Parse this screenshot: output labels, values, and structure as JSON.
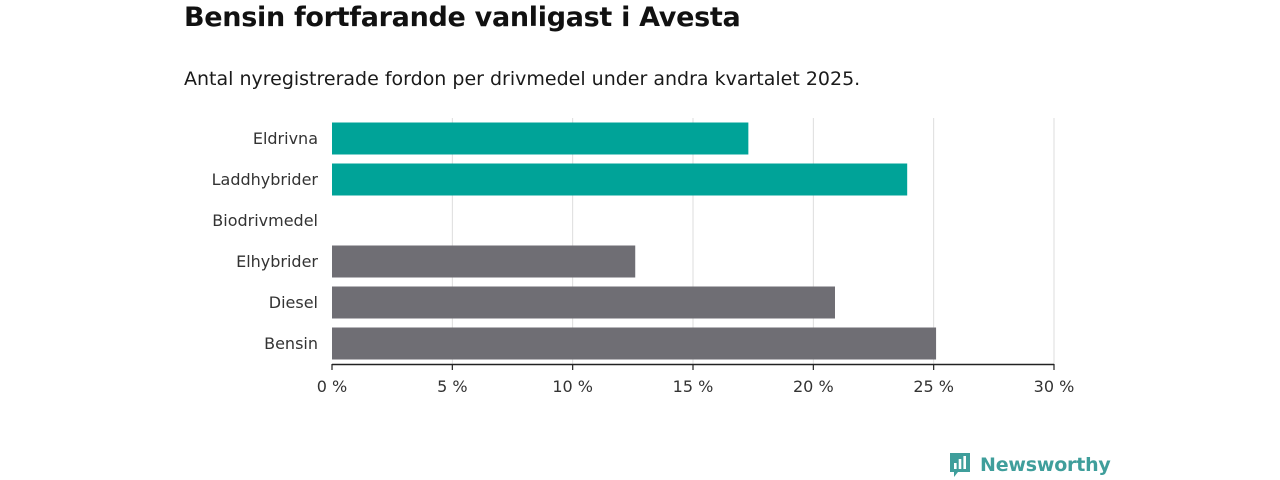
{
  "colors": {
    "highlight": "#00a398",
    "default": "#6f6e74",
    "grid": "#dddddd",
    "axis": "#222222",
    "brand": "#3f9e9b"
  },
  "brand": {
    "name": "Newsworthy",
    "icon": "newsworthy-logo-icon"
  },
  "chart_data": {
    "type": "bar",
    "orientation": "horizontal",
    "title": "Bensin fortfarande vanligast i Avesta",
    "subtitle": "Antal nyregistrerade fordon per drivmedel under andra kvartalet 2025.",
    "xlabel": "",
    "ylabel": "",
    "categories": [
      "Eldrivna",
      "Laddhybrider",
      "Biodrivmedel",
      "Elhybrider",
      "Diesel",
      "Bensin"
    ],
    "values": [
      17.3,
      23.9,
      0,
      12.6,
      20.9,
      25.1
    ],
    "highlighted": [
      true,
      true,
      false,
      false,
      false,
      false
    ],
    "xlim": [
      0,
      30
    ],
    "xticks": [
      0,
      5,
      10,
      15,
      20,
      25,
      30
    ],
    "xtick_labels": [
      "0 %",
      "5 %",
      "10 %",
      "15 %",
      "20 %",
      "25 %",
      "30 %"
    ],
    "grid": true,
    "legend": "none"
  }
}
